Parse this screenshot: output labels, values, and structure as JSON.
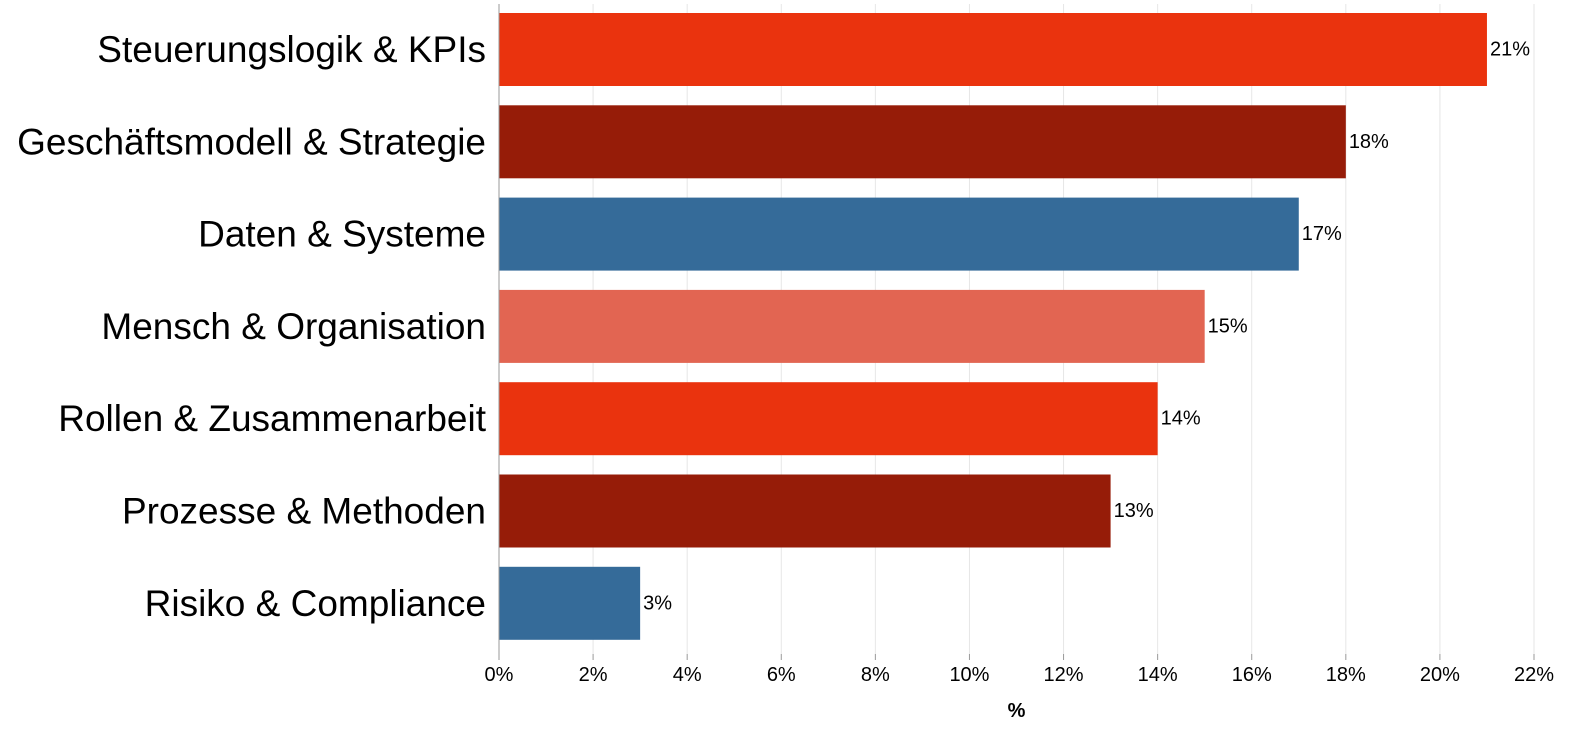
{
  "chart_data": {
    "type": "bar",
    "orientation": "horizontal",
    "categories": [
      "Steuerungslogik & KPIs",
      "Geschäftsmodell & Strategie",
      "Daten & Systeme",
      "Mensch & Organisation",
      "Rollen & Zusammenarbeit",
      "Prozesse & Methoden",
      "Risiko & Compliance"
    ],
    "values": [
      21,
      18,
      17,
      15,
      14,
      13,
      3
    ],
    "data_labels": [
      "21%",
      "18%",
      "17%",
      "15%",
      "14%",
      "13%",
      "3%"
    ],
    "colors": [
      "#ea330e",
      "#961c08",
      "#356b99",
      "#e26552",
      "#ea330e",
      "#961c08",
      "#356b99"
    ],
    "xlabel": "%",
    "ylabel": "",
    "xlim": [
      0,
      22
    ],
    "x_ticks": [
      0,
      2,
      4,
      6,
      8,
      10,
      12,
      14,
      16,
      18,
      20,
      22
    ],
    "x_tick_labels": [
      "0%",
      "2%",
      "4%",
      "6%",
      "8%",
      "10%",
      "12%",
      "14%",
      "16%",
      "18%",
      "20%",
      "22%"
    ],
    "grid": true,
    "legend": "none"
  }
}
